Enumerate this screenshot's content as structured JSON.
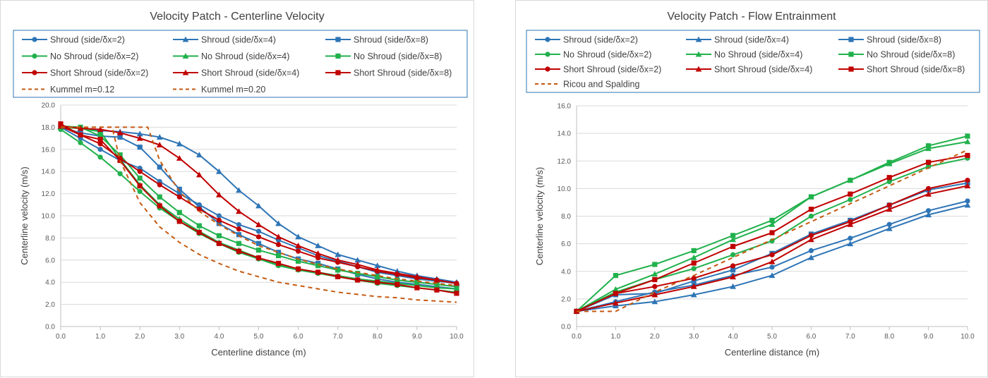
{
  "charts": [
    {
      "id": "left",
      "type": "line",
      "title": "Velocity Patch - Centerline Velocity",
      "xlabel": "Centerline distance (m)",
      "ylabel": "Centerline velocity (m/s)",
      "xlim": [
        0,
        10
      ],
      "ylim": [
        0,
        20
      ],
      "xticks": [
        "0.0",
        "1.0",
        "2.0",
        "3.0",
        "4.0",
        "5.0",
        "6.0",
        "7.0",
        "8.0",
        "9.0",
        "10.0"
      ],
      "yticks": [
        "0.0",
        "2.0",
        "4.0",
        "6.0",
        "8.0",
        "10.0",
        "12.0",
        "14.0",
        "16.0",
        "18.0",
        "20.0"
      ],
      "grid": "horizontal",
      "legend_position": "top",
      "series": [
        {
          "name": "Shroud (side/δx=2)",
          "color": "#2e75b6",
          "marker": "circle",
          "dash": false,
          "x": [
            0,
            0.5,
            1,
            1.5,
            2,
            2.5,
            3,
            3.5,
            4,
            4.5,
            5,
            5.5,
            6,
            6.5,
            7,
            7.5,
            8,
            8.5,
            9,
            9.5,
            10
          ],
          "y": [
            18.0,
            17.0,
            16.0,
            15.0,
            14.3,
            13.1,
            12.0,
            11.0,
            10.0,
            9.2,
            8.6,
            7.8,
            7.1,
            6.4,
            5.9,
            5.4,
            4.9,
            4.6,
            4.3,
            4.1,
            3.9
          ]
        },
        {
          "name": "Shroud (side/δx=4)",
          "color": "#2e75b6",
          "marker": "triangle",
          "dash": false,
          "x": [
            0,
            0.5,
            1,
            1.5,
            2,
            2.5,
            3,
            3.5,
            4,
            4.5,
            5,
            5.5,
            6,
            6.5,
            7,
            7.5,
            8,
            8.5,
            9,
            9.5,
            10
          ],
          "y": [
            18.0,
            17.9,
            17.7,
            17.6,
            17.4,
            17.1,
            16.5,
            15.5,
            14.0,
            12.3,
            10.9,
            9.3,
            8.1,
            7.3,
            6.5,
            6.0,
            5.5,
            5.0,
            4.6,
            4.3,
            4.0
          ]
        },
        {
          "name": "Shroud (side/δx=8)",
          "color": "#2e75b6",
          "marker": "square",
          "dash": false,
          "x": [
            0,
            0.5,
            1,
            1.5,
            2,
            2.5,
            3,
            3.5,
            4,
            4.5,
            5,
            5.5,
            6,
            6.5,
            7,
            7.5,
            8,
            8.5,
            9,
            9.5,
            10
          ],
          "y": [
            18.0,
            17.5,
            17.2,
            17.1,
            16.2,
            14.4,
            12.4,
            10.8,
            9.3,
            8.3,
            7.5,
            6.7,
            6.1,
            5.7,
            5.2,
            4.7,
            4.3,
            4.0,
            3.8,
            3.6,
            3.4
          ]
        },
        {
          "name": "No Shroud (side/δx=2)",
          "color": "#21b14c",
          "marker": "circle",
          "dash": false,
          "x": [
            0,
            0.5,
            1,
            1.5,
            2,
            2.5,
            3,
            3.5,
            4,
            4.5,
            5,
            5.5,
            6,
            6.5,
            7,
            7.5,
            8,
            8.5,
            9,
            9.5,
            10
          ],
          "y": [
            17.8,
            16.6,
            15.3,
            13.8,
            12.2,
            10.7,
            9.5,
            8.4,
            7.5,
            6.7,
            6.1,
            5.5,
            5.1,
            4.8,
            4.5,
            4.2,
            3.9,
            3.7,
            3.5,
            3.3,
            3.1
          ]
        },
        {
          "name": "No Shroud (side/δx=4)",
          "color": "#21b14c",
          "marker": "triangle",
          "dash": false,
          "x": [
            0,
            0.5,
            1,
            1.5,
            2,
            2.5,
            3,
            3.5,
            4,
            4.5,
            5,
            5.5,
            6,
            6.5,
            7,
            7.5,
            8,
            8.5,
            9,
            9.5,
            10
          ],
          "y": [
            18.0,
            17.9,
            17.6,
            15.1,
            12.8,
            11.0,
            9.7,
            8.6,
            7.6,
            6.9,
            6.2,
            5.6,
            5.2,
            4.9,
            4.6,
            4.3,
            4.1,
            3.9,
            3.7,
            3.5,
            3.4
          ]
        },
        {
          "name": "No Shroud (side/δx=8)",
          "color": "#21b14c",
          "marker": "square",
          "dash": false,
          "x": [
            0,
            0.5,
            1,
            1.5,
            2,
            2.5,
            3,
            3.5,
            4,
            4.5,
            5,
            5.5,
            6,
            6.5,
            7,
            7.5,
            8,
            8.5,
            9,
            9.5,
            10
          ],
          "y": [
            18.1,
            18.0,
            17.2,
            15.5,
            13.4,
            11.7,
            10.3,
            9.1,
            8.2,
            7.5,
            6.9,
            6.4,
            5.9,
            5.5,
            5.1,
            4.8,
            4.5,
            4.2,
            4.0,
            3.8,
            3.6
          ]
        },
        {
          "name": "Short Shroud (side/δx=2)",
          "color": "#c00000",
          "marker": "circle",
          "dash": false,
          "x": [
            0,
            0.5,
            1,
            1.5,
            2,
            2.5,
            3,
            3.5,
            4,
            4.5,
            5,
            5.5,
            6,
            6.5,
            7,
            7.5,
            8,
            8.5,
            9,
            9.5,
            10
          ],
          "y": [
            18.1,
            17.3,
            16.5,
            15.2,
            14.0,
            12.8,
            11.7,
            10.6,
            9.6,
            8.8,
            8.1,
            7.4,
            6.8,
            6.2,
            5.8,
            5.4,
            5.0,
            4.7,
            4.4,
            4.2,
            3.9
          ]
        },
        {
          "name": "Short Shroud (side/δx=4)",
          "color": "#c00000",
          "marker": "triangle",
          "dash": false,
          "x": [
            0,
            0.5,
            1,
            1.5,
            2,
            2.5,
            3,
            3.5,
            4,
            4.5,
            5,
            5.5,
            6,
            6.5,
            7,
            7.5,
            8,
            8.5,
            9,
            9.5,
            10
          ],
          "y": [
            18.1,
            17.9,
            17.8,
            17.5,
            17.0,
            16.4,
            15.2,
            13.7,
            11.9,
            10.4,
            9.2,
            8.1,
            7.3,
            6.6,
            6.0,
            5.6,
            5.1,
            4.8,
            4.5,
            4.2,
            3.9
          ]
        },
        {
          "name": "Short Shroud (side/δx=8)",
          "color": "#c00000",
          "marker": "square",
          "dash": false,
          "x": [
            0,
            0.5,
            1,
            1.5,
            2,
            2.5,
            3,
            3.5,
            4,
            4.5,
            5,
            5.5,
            6,
            6.5,
            7,
            7.5,
            8,
            8.5,
            9,
            9.5,
            10
          ],
          "y": [
            18.3,
            17.3,
            16.9,
            15.0,
            12.7,
            10.9,
            9.5,
            8.5,
            7.5,
            6.8,
            6.2,
            5.7,
            5.2,
            4.9,
            4.5,
            4.2,
            4.0,
            3.8,
            3.5,
            3.3,
            3.0
          ]
        },
        {
          "name": "Kummel m=0.12",
          "color": "#c55a11",
          "marker": "none",
          "dash": true,
          "x": [
            0,
            0.5,
            1,
            1.5,
            2,
            2.2,
            2.5,
            3,
            3.5,
            4,
            4.5,
            5,
            5.5,
            6,
            6.5,
            7,
            7.5,
            8,
            8.5,
            9,
            9.5,
            10
          ],
          "y": [
            18.0,
            18.0,
            18.0,
            18.0,
            18.0,
            18.0,
            15.0,
            12.2,
            10.4,
            9.2,
            8.2,
            7.3,
            6.7,
            6.1,
            5.6,
            5.2,
            4.9,
            4.6,
            4.3,
            4.1,
            3.9,
            3.7
          ]
        },
        {
          "name": "Kummel m=0.20",
          "color": "#c55a11",
          "marker": "none",
          "dash": true,
          "x": [
            0,
            0.5,
            1,
            1.3,
            1.5,
            2,
            2.5,
            3,
            3.5,
            4,
            4.5,
            5,
            5.5,
            6,
            6.5,
            7,
            7.5,
            8,
            8.5,
            9,
            9.5,
            10
          ],
          "y": [
            18.0,
            18.0,
            18.0,
            18.0,
            15.0,
            11.2,
            9.0,
            7.6,
            6.5,
            5.7,
            5.0,
            4.5,
            4.0,
            3.7,
            3.4,
            3.1,
            2.9,
            2.7,
            2.6,
            2.4,
            2.3,
            2.2
          ]
        }
      ]
    },
    {
      "id": "right",
      "type": "line",
      "title": "Velocity Patch - Flow Entrainment",
      "xlabel": "Centerline distance (m)",
      "ylabel": "Centerline velocity (m/s)",
      "xlim": [
        0,
        10
      ],
      "ylim": [
        0,
        16
      ],
      "xticks": [
        "0.0",
        "1.0",
        "2.0",
        "3.0",
        "4.0",
        "5.0",
        "6.0",
        "7.0",
        "8.0",
        "9.0",
        "10.0"
      ],
      "yticks": [
        "0.0",
        "2.0",
        "4.0",
        "6.0",
        "8.0",
        "10.0",
        "12.0",
        "14.0",
        "16.0"
      ],
      "grid": "horizontal",
      "legend_position": "top",
      "series": [
        {
          "name": "Shroud (side/δx=2)",
          "color": "#2e75b6",
          "marker": "circle",
          "dash": false,
          "x": [
            0,
            1,
            2,
            3,
            4,
            5,
            6,
            7,
            8,
            9,
            10
          ],
          "y": [
            1.1,
            1.8,
            2.5,
            3.0,
            3.7,
            4.3,
            5.5,
            6.4,
            7.4,
            8.4,
            9.1
          ]
        },
        {
          "name": "Shroud (side/δx=4)",
          "color": "#2e75b6",
          "marker": "triangle",
          "dash": false,
          "x": [
            0,
            1,
            2,
            3,
            4,
            5,
            6,
            7,
            8,
            9,
            10
          ],
          "y": [
            1.1,
            1.5,
            1.8,
            2.3,
            2.9,
            3.7,
            5.0,
            6.0,
            7.1,
            8.1,
            8.8
          ]
        },
        {
          "name": "Shroud (side/δx=8)",
          "color": "#2e75b6",
          "marker": "square",
          "dash": false,
          "x": [
            0,
            1,
            2,
            3,
            4,
            5,
            6,
            7,
            8,
            9,
            10
          ],
          "y": [
            1.1,
            2.3,
            2.4,
            3.3,
            4.1,
            5.3,
            6.7,
            7.7,
            8.8,
            9.9,
            10.4
          ]
        },
        {
          "name": "No Shroud (side/δx=2)",
          "color": "#21b14c",
          "marker": "circle",
          "dash": false,
          "x": [
            0,
            1,
            2,
            3,
            4,
            5,
            6,
            7,
            8,
            9,
            10
          ],
          "y": [
            1.1,
            2.5,
            3.4,
            4.2,
            5.2,
            6.2,
            8.0,
            9.2,
            10.5,
            11.6,
            12.2
          ]
        },
        {
          "name": "No Shroud (side/δx=4)",
          "color": "#21b14c",
          "marker": "triangle",
          "dash": false,
          "x": [
            0,
            1,
            2,
            3,
            4,
            5,
            6,
            7,
            8,
            9,
            10
          ],
          "y": [
            1.1,
            2.7,
            3.8,
            5.0,
            6.3,
            7.4,
            9.4,
            10.6,
            11.8,
            12.9,
            13.4
          ]
        },
        {
          "name": "No Shroud (side/δx=8)",
          "color": "#21b14c",
          "marker": "square",
          "dash": false,
          "x": [
            0,
            1,
            2,
            3,
            4,
            5,
            6,
            7,
            8,
            9,
            10
          ],
          "y": [
            1.1,
            3.7,
            4.5,
            5.5,
            6.6,
            7.7,
            9.4,
            10.6,
            11.9,
            13.1,
            13.8
          ]
        },
        {
          "name": "Short Shroud (side/δx=2)",
          "color": "#c00000",
          "marker": "circle",
          "dash": false,
          "x": [
            0,
            1,
            2,
            3,
            4,
            5,
            6,
            7,
            8,
            9,
            10
          ],
          "y": [
            1.1,
            2.4,
            2.9,
            3.5,
            4.4,
            5.2,
            6.6,
            7.6,
            8.8,
            10.0,
            10.6
          ]
        },
        {
          "name": "Short Shroud (side/δx=4)",
          "color": "#c00000",
          "marker": "triangle",
          "dash": false,
          "x": [
            0,
            1,
            2,
            3,
            4,
            5,
            6,
            7,
            8,
            9,
            10
          ],
          "y": [
            1.1,
            1.7,
            2.3,
            2.9,
            3.6,
            4.7,
            6.3,
            7.4,
            8.5,
            9.6,
            10.2
          ]
        },
        {
          "name": "Short Shroud (side/δx=8)",
          "color": "#c00000",
          "marker": "square",
          "dash": false,
          "x": [
            0,
            1,
            2,
            3,
            4,
            5,
            6,
            7,
            8,
            9,
            10
          ],
          "y": [
            1.1,
            2.4,
            3.4,
            4.6,
            5.8,
            6.8,
            8.5,
            9.6,
            10.8,
            11.9,
            12.4
          ]
        },
        {
          "name": "Ricou and Spalding",
          "color": "#c55a11",
          "marker": "none",
          "dash": true,
          "x": [
            0,
            1,
            2,
            3,
            4,
            5,
            6,
            7,
            8,
            9,
            10
          ],
          "y": [
            1.1,
            1.1,
            2.5,
            3.7,
            5.0,
            6.3,
            7.6,
            8.9,
            10.2,
            11.5,
            12.8
          ]
        }
      ]
    }
  ]
}
